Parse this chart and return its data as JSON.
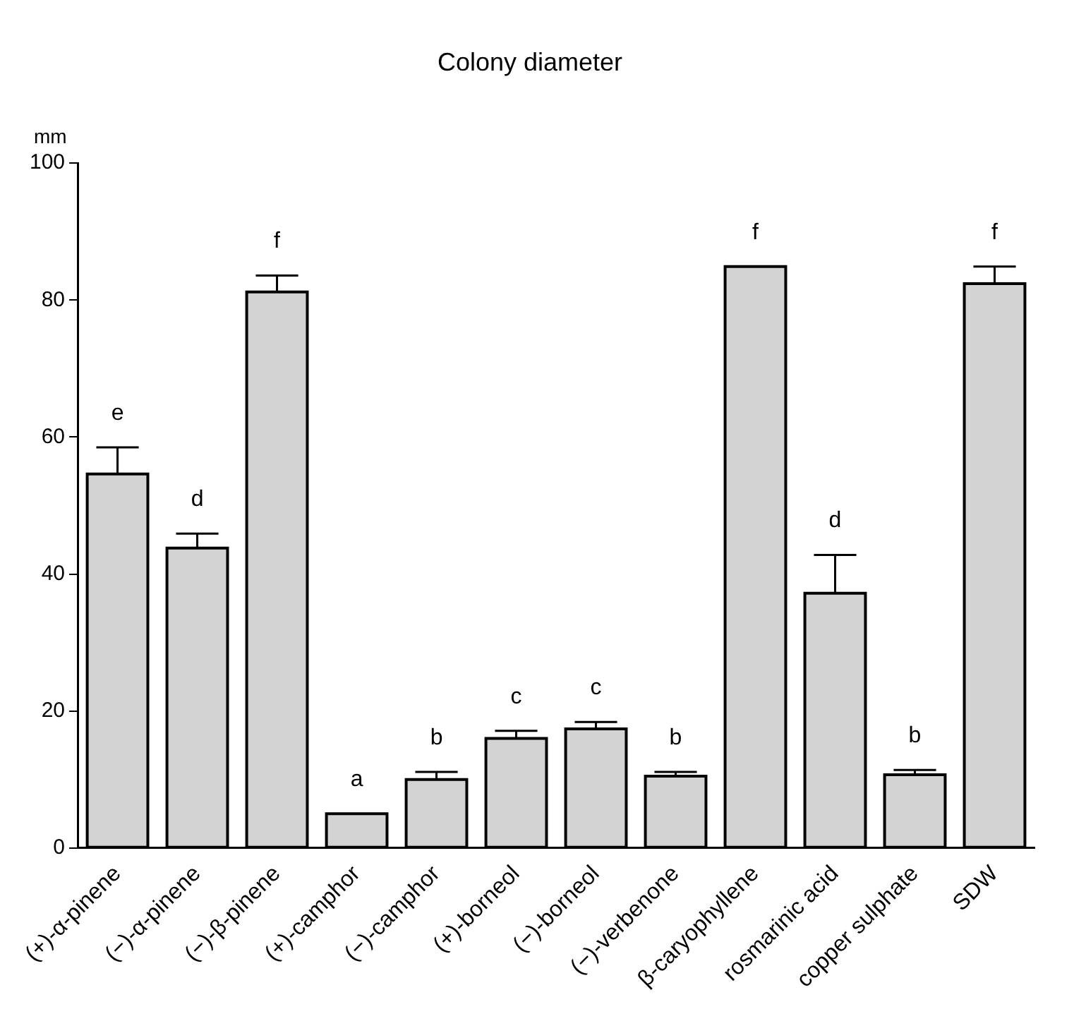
{
  "chart_data": {
    "type": "bar",
    "title": "Colony diameter",
    "ylabel": "mm",
    "categories": [
      "(+)-α-pinene",
      "(−)-α-pinene",
      "(−)-β-pinene",
      "(+)-camphor",
      "(−)-camphor",
      "(+)-borneol",
      "(−)-borneol",
      "(−)-verbenone",
      "β-caryophyllene",
      "rosmarinic acid",
      "copper sulphate",
      "SDW"
    ],
    "values": [
      54.6,
      43.8,
      81.2,
      5.0,
      10.0,
      16.0,
      17.4,
      10.5,
      84.9,
      37.2,
      10.7,
      82.4
    ],
    "errors": [
      [
        54.6,
        58.5
      ],
      [
        43.8,
        45.9
      ],
      [
        81.2,
        83.6
      ],
      null,
      [
        10.0,
        11.1
      ],
      [
        16.0,
        17.1
      ],
      [
        17.4,
        18.4
      ],
      [
        10.5,
        11.1
      ],
      null,
      [
        37.2,
        42.8
      ],
      [
        10.7,
        11.4
      ],
      [
        82.4,
        84.9
      ]
    ],
    "color": "#d3d3d3",
    "ylim": [
      0,
      100
    ],
    "yticks": [
      0,
      20,
      40,
      60,
      80,
      100
    ],
    "grid": false,
    "legend": false,
    "annotations": [
      "e",
      "d",
      "f",
      "a",
      "b",
      "c",
      "c",
      "b",
      "f",
      "d",
      "b",
      "f"
    ]
  }
}
